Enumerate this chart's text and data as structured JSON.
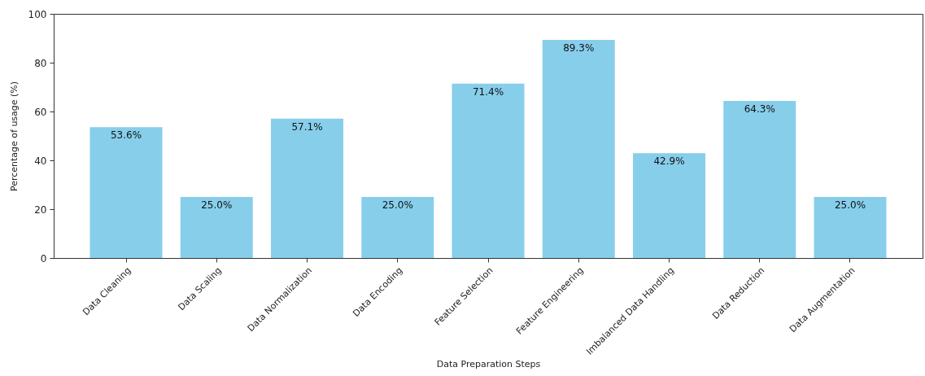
{
  "chart_data": {
    "type": "bar",
    "xlabel": "Data Preparation Steps",
    "ylabel": "Percentage of usage (%)",
    "categories": [
      "Data Cleaning",
      "Data Scaling",
      "Data Normalization",
      "Data Encoding",
      "Feature Selection",
      "Feature Engineering",
      "Imbalanced Data Handling",
      "Data Reduction",
      "Data Augmentation"
    ],
    "values": [
      53.6,
      25.0,
      57.1,
      25.0,
      71.4,
      89.3,
      42.9,
      64.3,
      25.0
    ],
    "value_labels": [
      "53.6%",
      "25.0%",
      "57.1%",
      "25.0%",
      "71.4%",
      "89.3%",
      "42.9%",
      "64.3%",
      "25.0%"
    ],
    "color": "#87ceeb",
    "ylim": [
      0,
      100
    ],
    "yticks": [
      0,
      20,
      40,
      60,
      80,
      100
    ],
    "grid": false
  }
}
